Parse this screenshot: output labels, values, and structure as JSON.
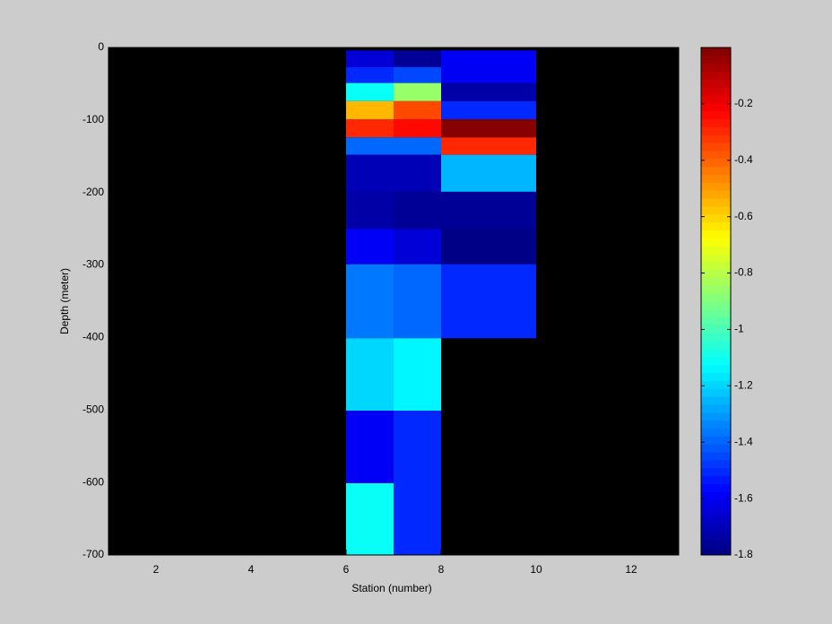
{
  "chart_data": {
    "type": "heatmap",
    "xlabel": "Station (number)",
    "ylabel": "Depth (meter)",
    "xlim": [
      1,
      13
    ],
    "xticks": [
      2,
      4,
      6,
      8,
      10,
      12
    ],
    "ylim": [
      -700,
      0
    ],
    "yticks": [
      -700,
      -600,
      -500,
      -400,
      -300,
      -200,
      -100,
      0
    ],
    "nan_color": "#000000",
    "colormap": "jet",
    "colormap_levels": 64,
    "clim": [
      -1.8,
      0
    ],
    "cticks": [
      -1.8,
      -1.6,
      -1.4,
      -1.2,
      -1,
      -0.8,
      -0.6,
      -0.4,
      -0.2
    ],
    "cells": [
      {
        "x": [
          6,
          7
        ],
        "y": [
          -27,
          -4
        ],
        "value": -1.65
      },
      {
        "x": [
          6,
          7
        ],
        "y": [
          -49,
          -27
        ],
        "value": -1.5
      },
      {
        "x": [
          6,
          7
        ],
        "y": [
          -74,
          -49
        ],
        "value": -1.1
      },
      {
        "x": [
          6,
          7
        ],
        "y": [
          -99,
          -74
        ],
        "value": -0.55
      },
      {
        "x": [
          6,
          7
        ],
        "y": [
          -124,
          -99
        ],
        "value": -0.3
      },
      {
        "x": [
          6,
          7
        ],
        "y": [
          -148,
          -124
        ],
        "value": -1.4
      },
      {
        "x": [
          6,
          7
        ],
        "y": [
          -199,
          -148
        ],
        "value": -1.7
      },
      {
        "x": [
          6,
          7
        ],
        "y": [
          -250,
          -199
        ],
        "value": -1.73
      },
      {
        "x": [
          6,
          7
        ],
        "y": [
          -299,
          -250
        ],
        "value": -1.6
      },
      {
        "x": [
          6,
          7
        ],
        "y": [
          -401,
          -299
        ],
        "value": -1.35
      },
      {
        "x": [
          6,
          7
        ],
        "y": [
          -501,
          -401
        ],
        "value": -1.2
      },
      {
        "x": [
          6,
          7
        ],
        "y": [
          -601,
          -501
        ],
        "value": -1.6
      },
      {
        "x": [
          6,
          7
        ],
        "y": [
          -700,
          -601
        ],
        "value": -1.1
      },
      {
        "x": [
          7,
          8
        ],
        "y": [
          -27,
          -4
        ],
        "value": -1.75
      },
      {
        "x": [
          7,
          8
        ],
        "y": [
          -49,
          -27
        ],
        "value": -1.45
      },
      {
        "x": [
          7,
          8
        ],
        "y": [
          -74,
          -49
        ],
        "value": -0.85
      },
      {
        "x": [
          7,
          8
        ],
        "y": [
          -99,
          -74
        ],
        "value": -0.35
      },
      {
        "x": [
          7,
          8
        ],
        "y": [
          -124,
          -99
        ],
        "value": -0.25
      },
      {
        "x": [
          7,
          8
        ],
        "y": [
          -148,
          -124
        ],
        "value": -1.4
      },
      {
        "x": [
          7,
          8
        ],
        "y": [
          -199,
          -148
        ],
        "value": -1.7
      },
      {
        "x": [
          7,
          8
        ],
        "y": [
          -250,
          -199
        ],
        "value": -1.76
      },
      {
        "x": [
          7,
          8
        ],
        "y": [
          -299,
          -250
        ],
        "value": -1.65
      },
      {
        "x": [
          7,
          8
        ],
        "y": [
          -401,
          -299
        ],
        "value": -1.4
      },
      {
        "x": [
          7,
          8
        ],
        "y": [
          -501,
          -401
        ],
        "value": -1.15
      },
      {
        "x": [
          7,
          8
        ],
        "y": [
          -700,
          -501
        ],
        "value": -1.5
      },
      {
        "x": [
          8,
          10
        ],
        "y": [
          -27,
          -4
        ],
        "value": -1.6
      },
      {
        "x": [
          8,
          10
        ],
        "y": [
          -49,
          -27
        ],
        "value": -1.58
      },
      {
        "x": [
          8,
          10
        ],
        "y": [
          -74,
          -49
        ],
        "value": -1.72
      },
      {
        "x": [
          8,
          10
        ],
        "y": [
          -99,
          -74
        ],
        "value": -1.5
      },
      {
        "x": [
          8,
          10
        ],
        "y": [
          -124,
          -99
        ],
        "value": -0.02
      },
      {
        "x": [
          8,
          10
        ],
        "y": [
          -148,
          -124
        ],
        "value": -0.3
      },
      {
        "x": [
          8,
          10
        ],
        "y": [
          -199,
          -148
        ],
        "value": -1.25
      },
      {
        "x": [
          8,
          10
        ],
        "y": [
          -250,
          -199
        ],
        "value": -1.75
      },
      {
        "x": [
          8,
          10
        ],
        "y": [
          -299,
          -250
        ],
        "value": -1.8
      },
      {
        "x": [
          8,
          10
        ],
        "y": [
          -401,
          -299
        ],
        "value": -1.5
      }
    ]
  }
}
